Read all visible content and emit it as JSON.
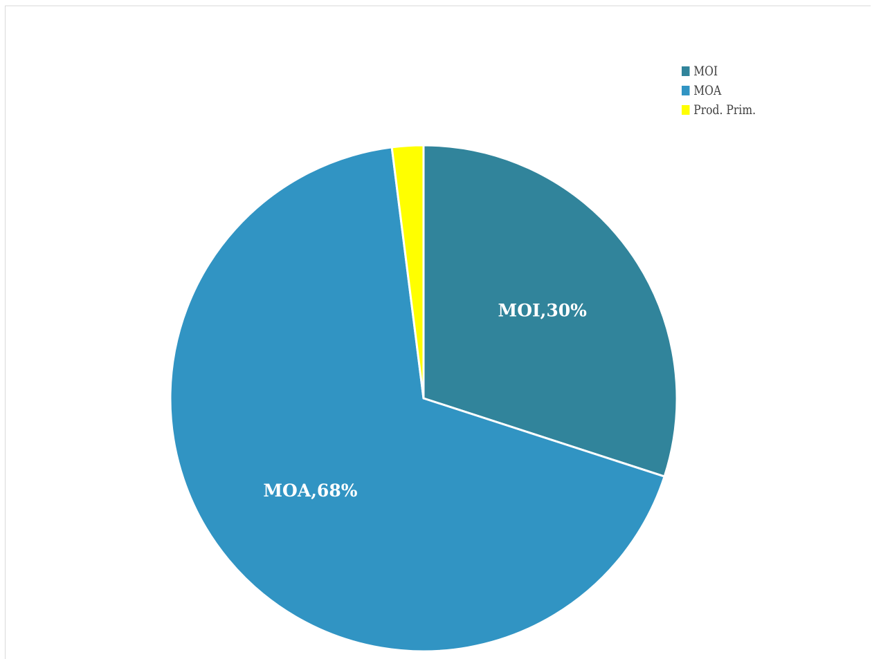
{
  "chart_data": {
    "type": "pie",
    "title": "",
    "slices": [
      {
        "label": "MOI",
        "value": 30,
        "data_label": "MOI,30%",
        "color": "#31849b"
      },
      {
        "label": "MOA",
        "value": 68,
        "data_label": "MOA,68%",
        "color": "#3194c3"
      },
      {
        "label": "Prod. Prim.",
        "value": 2,
        "data_label": "",
        "color": "#ffff00"
      }
    ],
    "start_angle_deg": 0,
    "direction": "clockwise",
    "legend": {
      "position": "top-right",
      "items": [
        "MOI",
        "MOA",
        "Prod. Prim."
      ]
    }
  }
}
